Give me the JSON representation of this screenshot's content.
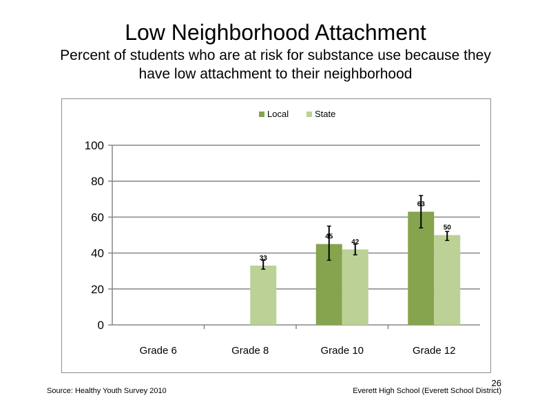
{
  "slide": {
    "title": "Low Neighborhood  Attachment",
    "subtitle_line1": "Percent of students  who are at risk for substance  use because they",
    "subtitle_line2": "have low attachment  to their neighborhood",
    "source": "Source: Healthy  Youth Survey 2010",
    "school": "Everett High School (Everett School District)",
    "page_number": "26"
  },
  "colors": {
    "local": "#86a34d",
    "state": "#bcd195",
    "gridline": "#868686",
    "axis": "#868686"
  },
  "chart_data": {
    "type": "bar",
    "categories": [
      "Grade 6",
      "Grade 8",
      "Grade 10",
      "Grade 12"
    ],
    "series": [
      {
        "name": "Local",
        "values": [
          null,
          null,
          45,
          63
        ],
        "labels": [
          "",
          "",
          "45",
          "63"
        ],
        "error_low": [
          null,
          null,
          36,
          54
        ],
        "error_high": [
          null,
          null,
          55,
          72
        ]
      },
      {
        "name": "State",
        "values": [
          null,
          33,
          42,
          50
        ],
        "labels": [
          "",
          "33",
          "42",
          "50"
        ],
        "error_low": [
          null,
          31,
          39,
          47
        ],
        "error_high": [
          null,
          36,
          45,
          52
        ]
      }
    ],
    "ylim": [
      0,
      100
    ],
    "yticks": [
      "0",
      "20",
      "40",
      "60",
      "80",
      "100"
    ],
    "ytick_values": [
      0,
      20,
      40,
      60,
      80,
      100
    ],
    "grid": true,
    "legend_position": "top",
    "title": "",
    "xlabel": "",
    "ylabel": ""
  }
}
